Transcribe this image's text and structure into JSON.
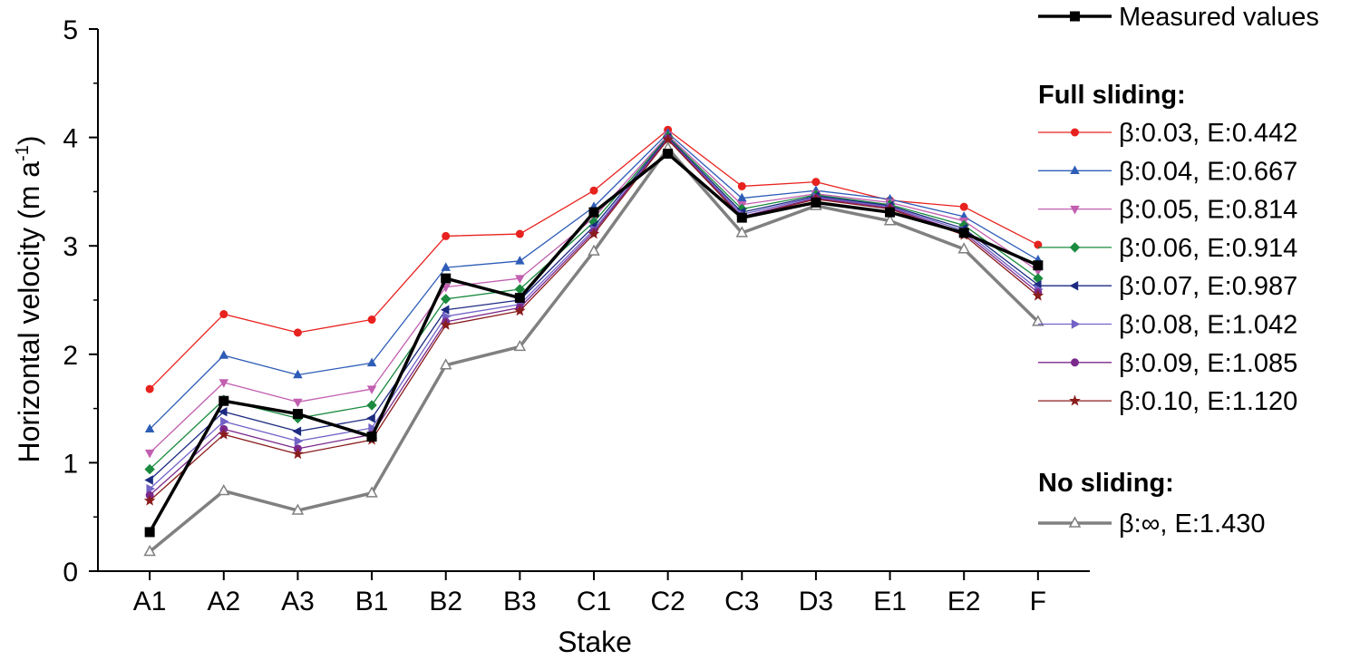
{
  "chart_data": {
    "type": "line",
    "xlabel": "Stake",
    "ylabel": "Horizontal  velocity  (m a",
    "ylabel_superscript": "-1",
    "ylabel_suffix": ")",
    "ylim": [
      0,
      5
    ],
    "yticks": [
      0,
      1,
      2,
      3,
      4,
      5
    ],
    "categories": [
      "A1",
      "A2",
      "A3",
      "B1",
      "B2",
      "B3",
      "C1",
      "C2",
      "C3",
      "D3",
      "E1",
      "E2",
      "F"
    ],
    "legend_groups": {
      "full_sliding": "Full sliding:",
      "no_sliding": "No sliding:"
    },
    "series": [
      {
        "name": "Measured values",
        "group": "measured",
        "color": "#000000",
        "marker": "square",
        "filled": true,
        "width": 3.5,
        "values": [
          0.36,
          1.57,
          1.45,
          1.24,
          2.7,
          2.52,
          3.31,
          3.85,
          3.26,
          3.4,
          3.31,
          3.12,
          2.82
        ]
      },
      {
        "name": "β:0.03, E:0.442",
        "group": "full",
        "color": "#e8221e",
        "marker": "circle",
        "filled": true,
        "width": 1.3,
        "values": [
          1.68,
          2.37,
          2.2,
          2.32,
          3.09,
          3.11,
          3.51,
          4.07,
          3.55,
          3.59,
          3.42,
          3.36,
          3.01
        ]
      },
      {
        "name": "β:0.04, E:0.667",
        "group": "full",
        "color": "#2e5db7",
        "marker": "triangle-up",
        "filled": true,
        "width": 1.3,
        "values": [
          1.31,
          1.99,
          1.81,
          1.92,
          2.8,
          2.86,
          3.36,
          4.04,
          3.44,
          3.51,
          3.43,
          3.27,
          2.87
        ]
      },
      {
        "name": "β:0.05, E:0.814",
        "group": "full",
        "color": "#c25fb0",
        "marker": "triangle-down",
        "filled": true,
        "width": 1.3,
        "values": [
          1.09,
          1.74,
          1.56,
          1.68,
          2.62,
          2.7,
          3.26,
          4.02,
          3.38,
          3.48,
          3.4,
          3.23,
          2.77
        ]
      },
      {
        "name": "β:0.06, E:0.914",
        "group": "full",
        "color": "#1a8a3e",
        "marker": "diamond",
        "filled": true,
        "width": 1.3,
        "values": [
          0.94,
          1.58,
          1.41,
          1.53,
          2.51,
          2.6,
          3.22,
          4.01,
          3.34,
          3.47,
          3.38,
          3.19,
          2.7
        ]
      },
      {
        "name": "β:0.07, E:0.987",
        "group": "full",
        "color": "#1c2a80",
        "marker": "triangle-left",
        "filled": true,
        "width": 1.3,
        "values": [
          0.84,
          1.47,
          1.29,
          1.41,
          2.41,
          2.5,
          3.18,
          4.0,
          3.31,
          3.46,
          3.37,
          3.16,
          2.64
        ]
      },
      {
        "name": "β:0.08, E:1.042",
        "group": "full",
        "color": "#7263c7",
        "marker": "triangle-right",
        "filled": true,
        "width": 1.3,
        "values": [
          0.76,
          1.38,
          1.2,
          1.32,
          2.35,
          2.46,
          3.15,
          3.99,
          3.29,
          3.45,
          3.36,
          3.14,
          2.6
        ]
      },
      {
        "name": "β:0.09, E:1.085",
        "group": "full",
        "color": "#7b2a8c",
        "marker": "circle",
        "filled": true,
        "width": 1.3,
        "values": [
          0.7,
          1.31,
          1.13,
          1.26,
          2.3,
          2.43,
          3.13,
          3.99,
          3.27,
          3.44,
          3.35,
          3.12,
          2.57
        ]
      },
      {
        "name": "β:0.10, E:1.120",
        "group": "full",
        "color": "#8a1c1c",
        "marker": "star",
        "filled": true,
        "width": 1.3,
        "values": [
          0.65,
          1.26,
          1.08,
          1.21,
          2.27,
          2.4,
          3.11,
          3.98,
          3.26,
          3.43,
          3.34,
          3.1,
          2.54
        ]
      },
      {
        "name": "β:∞, E:1.430",
        "group": "none",
        "color": "#808080",
        "marker": "triangle-up",
        "filled": false,
        "width": 3.5,
        "values": [
          0.18,
          0.74,
          0.56,
          0.72,
          1.9,
          2.07,
          2.95,
          3.9,
          3.12,
          3.37,
          3.23,
          2.97,
          2.3
        ]
      }
    ]
  }
}
